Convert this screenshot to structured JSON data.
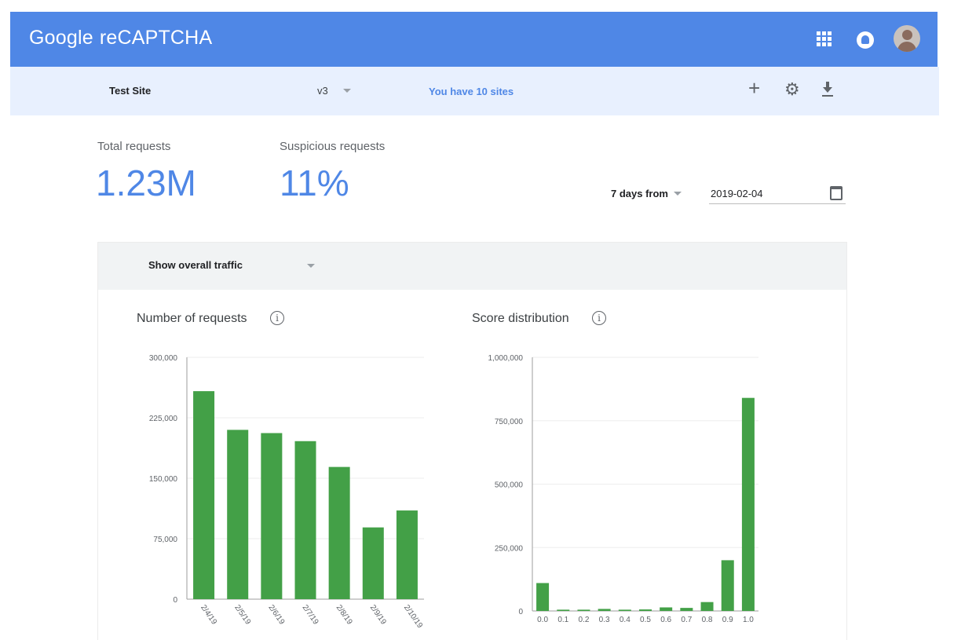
{
  "header": {
    "brand_google": "Google",
    "brand_product": "reCAPTCHA",
    "icons": [
      "apps-icon",
      "notifications-icon",
      "avatar"
    ],
    "colors": {
      "bar": "#4f87e6",
      "subbar": "#e8f0fe"
    }
  },
  "site_bar": {
    "site_name": "Test Site",
    "version": "v3",
    "sites_link": "You have 10 sites",
    "icons": [
      "plus-icon",
      "gear-icon",
      "download-icon"
    ]
  },
  "stats": {
    "total_label": "Total requests",
    "total_value": "1.23M",
    "suspicious_label": "Suspicious requests",
    "suspicious_value": "11%"
  },
  "date_range": {
    "range_label": "7 days from",
    "date_value": "2019-02-04"
  },
  "card": {
    "filter_label": "Show overall traffic"
  },
  "chart_data": [
    {
      "type": "bar",
      "title": "Number of requests",
      "categories": [
        "2/4/19",
        "2/5/19",
        "2/6/19",
        "2/7/19",
        "2/8/19",
        "2/9/19",
        "2/10/19"
      ],
      "values": [
        258000,
        210000,
        206000,
        196000,
        164000,
        89000,
        110000
      ],
      "yticks": [
        "0",
        "75,000",
        "150,000",
        "225,000",
        "300,000"
      ],
      "ylim": [
        0,
        300000
      ],
      "color": "#43a047",
      "grid": true
    },
    {
      "type": "bar",
      "title": "Score distribution",
      "categories": [
        "0.0",
        "0.1",
        "0.2",
        "0.3",
        "0.4",
        "0.5",
        "0.6",
        "0.7",
        "0.8",
        "0.9",
        "1.0"
      ],
      "values": [
        110000,
        5000,
        5000,
        8000,
        5000,
        6000,
        14000,
        12000,
        35000,
        200000,
        840000
      ],
      "yticks": [
        "0",
        "250,000",
        "500,000",
        "750,000",
        "1,000,000"
      ],
      "ylim": [
        0,
        1000000
      ],
      "color": "#43a047",
      "grid": true
    }
  ]
}
